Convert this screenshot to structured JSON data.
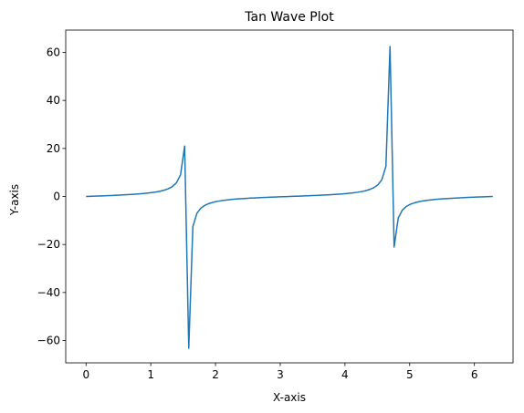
{
  "chart_data": {
    "type": "line",
    "title": "Tan Wave Plot",
    "xlabel": "X-axis",
    "ylabel": "Y-axis",
    "xlim": [
      -0.314,
      6.597
    ],
    "ylim": [
      -69.3,
      69.3
    ],
    "x_ticks": [
      0,
      1,
      2,
      3,
      4,
      5,
      6
    ],
    "y_ticks": [
      -60,
      -40,
      -20,
      0,
      20,
      40,
      60
    ],
    "grid": false,
    "line_color": "#1f77b4",
    "series": [
      {
        "function": "tan",
        "domain": [
          0,
          6.283
        ],
        "num_points": 100,
        "x": [],
        "y": []
      }
    ]
  }
}
